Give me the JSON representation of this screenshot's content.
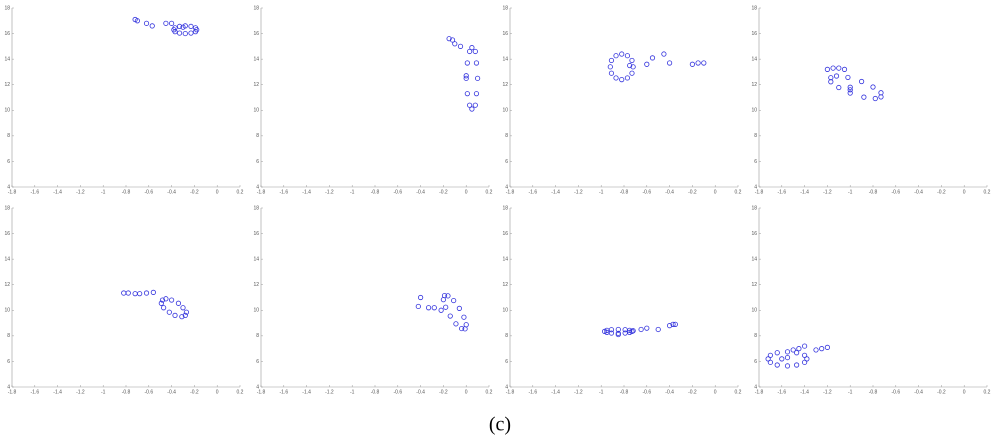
{
  "chart_data": [
    {
      "type": "scatter",
      "color": "#3333dd",
      "xlim": [
        -1.8,
        0.2
      ],
      "ylim": [
        4,
        18
      ],
      "xticks": [
        -1.8,
        -1.6,
        -1.4,
        -1.2,
        -1,
        -0.8,
        -0.6,
        -0.4,
        -0.2,
        0,
        0.2
      ],
      "yticks": [
        4,
        6,
        8,
        10,
        12,
        14,
        16,
        18
      ],
      "x": [
        -0.72,
        -0.7,
        -0.62,
        -0.57,
        -0.45,
        -0.4,
        -0.3,
        -0.18,
        -0.19,
        -0.23,
        -0.28,
        -0.33,
        -0.37,
        -0.38,
        -0.37,
        -0.33,
        -0.28,
        -0.23,
        -0.19
      ],
      "y": [
        17.1,
        17.0,
        16.8,
        16.6,
        16.8,
        16.8,
        16.5,
        16.3,
        16.45,
        16.56,
        16.6,
        16.56,
        16.45,
        16.3,
        16.15,
        16.04,
        16,
        16.04,
        16.15
      ]
    },
    {
      "type": "scatter",
      "color": "#3333dd",
      "xlim": [
        -1.8,
        0.2
      ],
      "ylim": [
        4,
        18
      ],
      "xticks": [
        -1.8,
        -1.6,
        -1.4,
        -1.2,
        -1,
        -0.8,
        -0.6,
        -0.4,
        -0.2,
        0,
        0.2
      ],
      "yticks": [
        4,
        6,
        8,
        10,
        12,
        14,
        16,
        18
      ],
      "x": [
        -0.15,
        -0.12,
        -0.1,
        -0.05,
        0.0,
        0.1,
        0.09,
        0.08,
        0.05,
        0.03,
        0.01,
        0,
        0.01,
        0.03,
        0.05,
        0.08,
        0.09
      ],
      "y": [
        15.6,
        15.5,
        15.2,
        15,
        12.7,
        12.5,
        13.7,
        14.6,
        14.9,
        14.6,
        13.7,
        12.5,
        11.3,
        10.4,
        10.1,
        10.4,
        11.3
      ]
    },
    {
      "type": "scatter",
      "color": "#3333dd",
      "xlim": [
        -1.8,
        0.2
      ],
      "ylim": [
        4,
        18
      ],
      "xticks": [
        -1.8,
        -1.6,
        -1.4,
        -1.2,
        -1,
        -0.8,
        -0.6,
        -0.4,
        -0.2,
        0,
        0.2
      ],
      "yticks": [
        4,
        6,
        8,
        10,
        12,
        14,
        16,
        18
      ],
      "x": [
        -0.75,
        -0.6,
        -0.55,
        -0.45,
        -0.4,
        -0.2,
        -0.15,
        -0.1,
        -0.72,
        -0.73,
        -0.77,
        -0.82,
        -0.87,
        -0.91,
        -0.92,
        -0.91,
        -0.87,
        -0.82,
        -0.77,
        -0.73
      ],
      "y": [
        13.5,
        13.6,
        14.1,
        14.4,
        13.7,
        13.6,
        13.7,
        13.7,
        13.4,
        13.9,
        14.27,
        14.4,
        14.27,
        13.9,
        13.4,
        12.9,
        12.53,
        12.4,
        12.53,
        12.9
      ]
    },
    {
      "type": "scatter",
      "color": "#3333dd",
      "xlim": [
        -1.8,
        0.2
      ],
      "ylim": [
        4,
        18
      ],
      "xticks": [
        -1.8,
        -1.6,
        -1.4,
        -1.2,
        -1,
        -0.8,
        -0.6,
        -0.4,
        -0.2,
        0,
        0.2
      ],
      "yticks": [
        4,
        6,
        8,
        10,
        12,
        14,
        16,
        18
      ],
      "x": [
        -1.2,
        -1.15,
        -1.1,
        -1.05,
        -1.0,
        -1.0,
        -0.73,
        -0.73,
        -0.8,
        -0.9,
        -1.02,
        -1.12,
        -1.17,
        -1.17,
        -1.1,
        -1.0,
        -0.88,
        -0.78
      ],
      "y": [
        13.2,
        13.3,
        13.3,
        13.2,
        11.8,
        11.6,
        11.05,
        11.37,
        11.82,
        12.25,
        12.57,
        12.68,
        12.55,
        12.23,
        11.78,
        11.35,
        11.03,
        10.92
      ]
    },
    {
      "type": "scatter",
      "color": "#3333dd",
      "xlim": [
        -1.8,
        0.2
      ],
      "ylim": [
        4,
        18
      ],
      "xticks": [
        -1.8,
        -1.6,
        -1.4,
        -1.2,
        -1,
        -0.8,
        -0.6,
        -0.4,
        -0.2,
        0,
        0.2
      ],
      "yticks": [
        4,
        6,
        8,
        10,
        12,
        14,
        16,
        18
      ],
      "x": [
        -0.82,
        -0.78,
        -0.72,
        -0.68,
        -0.62,
        -0.56,
        -0.28,
        -0.27,
        -0.3,
        -0.34,
        -0.4,
        -0.45,
        -0.48,
        -0.49,
        -0.47,
        -0.42,
        -0.37,
        -0.31
      ],
      "y": [
        11.35,
        11.35,
        11.3,
        11.3,
        11.35,
        11.4,
        9.6,
        9.85,
        10.2,
        10.55,
        10.8,
        10.9,
        10.8,
        10.55,
        10.2,
        9.85,
        9.6,
        9.5
      ]
    },
    {
      "type": "scatter",
      "color": "#3333dd",
      "xlim": [
        -1.8,
        0.2
      ],
      "ylim": [
        4,
        18
      ],
      "xticks": [
        -1.8,
        -1.6,
        -1.4,
        -1.2,
        -1,
        -0.8,
        -0.6,
        -0.4,
        -0.2,
        0,
        0.2
      ],
      "yticks": [
        4,
        6,
        8,
        10,
        12,
        14,
        16,
        18
      ],
      "x": [
        -0.42,
        -0.4,
        -0.33,
        -0.28,
        -0.22,
        -0.01,
        0,
        -0.02,
        -0.06,
        -0.11,
        -0.16,
        -0.19,
        -0.2,
        -0.18,
        -0.14,
        -0.09,
        -0.04
      ],
      "y": [
        10.3,
        11.0,
        10.2,
        10.2,
        10.0,
        8.55,
        8.87,
        9.46,
        10.15,
        10.76,
        11.13,
        11.15,
        10.83,
        10.24,
        9.55,
        8.94,
        8.57
      ]
    },
    {
      "type": "scatter",
      "color": "#3333dd",
      "xlim": [
        -1.8,
        0.2
      ],
      "ylim": [
        4,
        18
      ],
      "xticks": [
        -1.8,
        -1.6,
        -1.4,
        -1.2,
        -1,
        -0.8,
        -0.6,
        -0.4,
        -0.2,
        0,
        0.2
      ],
      "yticks": [
        4,
        6,
        8,
        10,
        12,
        14,
        16,
        18
      ],
      "x": [
        -0.72,
        -0.65,
        -0.6,
        -0.5,
        -0.4,
        -0.37,
        -0.35,
        -0.85,
        -0.73,
        -0.75,
        -0.79,
        -0.85,
        -0.91,
        -0.95,
        -0.97,
        -0.95,
        -0.91,
        -0.85,
        -0.79,
        -0.75
      ],
      "y": [
        8.4,
        8.5,
        8.6,
        8.5,
        8.8,
        8.9,
        8.9,
        8.1,
        8.35,
        8.43,
        8.48,
        8.5,
        8.48,
        8.43,
        8.35,
        8.27,
        8.22,
        8.2,
        8.22,
        8.27
      ]
    },
    {
      "type": "scatter",
      "color": "#3333dd",
      "xlim": [
        -1.8,
        0.2
      ],
      "ylim": [
        4,
        18
      ],
      "xticks": [
        -1.8,
        -1.6,
        -1.4,
        -1.2,
        -1,
        -0.8,
        -0.6,
        -0.4,
        -0.2,
        0,
        0.2
      ],
      "yticks": [
        4,
        6,
        8,
        10,
        12,
        14,
        16,
        18
      ],
      "x": [
        -1.5,
        -1.45,
        -1.4,
        -1.3,
        -1.25,
        -1.2,
        -1.6,
        -1.55,
        -1.38,
        -1.4,
        -1.47,
        -1.55,
        -1.64,
        -1.7,
        -1.72,
        -1.7,
        -1.64,
        -1.55,
        -1.47,
        -1.4
      ],
      "y": [
        6.9,
        7.0,
        7.2,
        6.9,
        7.0,
        7.1,
        6.2,
        6.3,
        6.2,
        6.48,
        6.68,
        6.75,
        6.68,
        6.48,
        6.2,
        5.93,
        5.72,
        5.65,
        5.72,
        5.93
      ]
    }
  ],
  "caption": "(c)"
}
